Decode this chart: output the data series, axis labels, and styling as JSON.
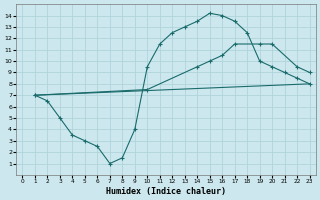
{
  "xlabel": "Humidex (Indice chaleur)",
  "bg_color": "#cce8ee",
  "grid_color": "#b0d4dc",
  "line_color": "#1a6b6b",
  "line1_x": [
    1,
    2,
    3,
    4,
    5,
    6,
    7,
    8,
    9,
    10,
    11,
    12,
    13,
    14,
    15,
    16,
    17,
    18,
    19,
    20,
    21,
    22,
    23
  ],
  "line1_y": [
    7.0,
    6.5,
    5.0,
    3.5,
    3.0,
    2.5,
    1.0,
    1.5,
    4.0,
    9.5,
    11.5,
    12.5,
    13.0,
    13.5,
    14.2,
    14.0,
    13.5,
    12.5,
    10.0,
    9.5,
    9.0,
    8.5,
    8.0
  ],
  "line2_x": [
    1,
    10,
    14,
    15,
    16,
    17,
    19,
    20,
    22,
    23
  ],
  "line2_y": [
    7.0,
    7.5,
    9.5,
    10.0,
    10.5,
    11.5,
    11.5,
    11.5,
    9.5,
    9.0
  ],
  "line3_x": [
    1,
    23
  ],
  "line3_y": [
    7.0,
    8.0
  ],
  "xlim": [
    -0.5,
    23.5
  ],
  "ylim": [
    0,
    15
  ],
  "xticks": [
    0,
    1,
    2,
    3,
    4,
    5,
    6,
    7,
    8,
    9,
    10,
    11,
    12,
    13,
    14,
    15,
    16,
    17,
    18,
    19,
    20,
    21,
    22,
    23
  ],
  "yticks": [
    1,
    2,
    3,
    4,
    5,
    6,
    7,
    8,
    9,
    10,
    11,
    12,
    13,
    14
  ],
  "figsize": [
    3.2,
    2.0
  ],
  "dpi": 100
}
